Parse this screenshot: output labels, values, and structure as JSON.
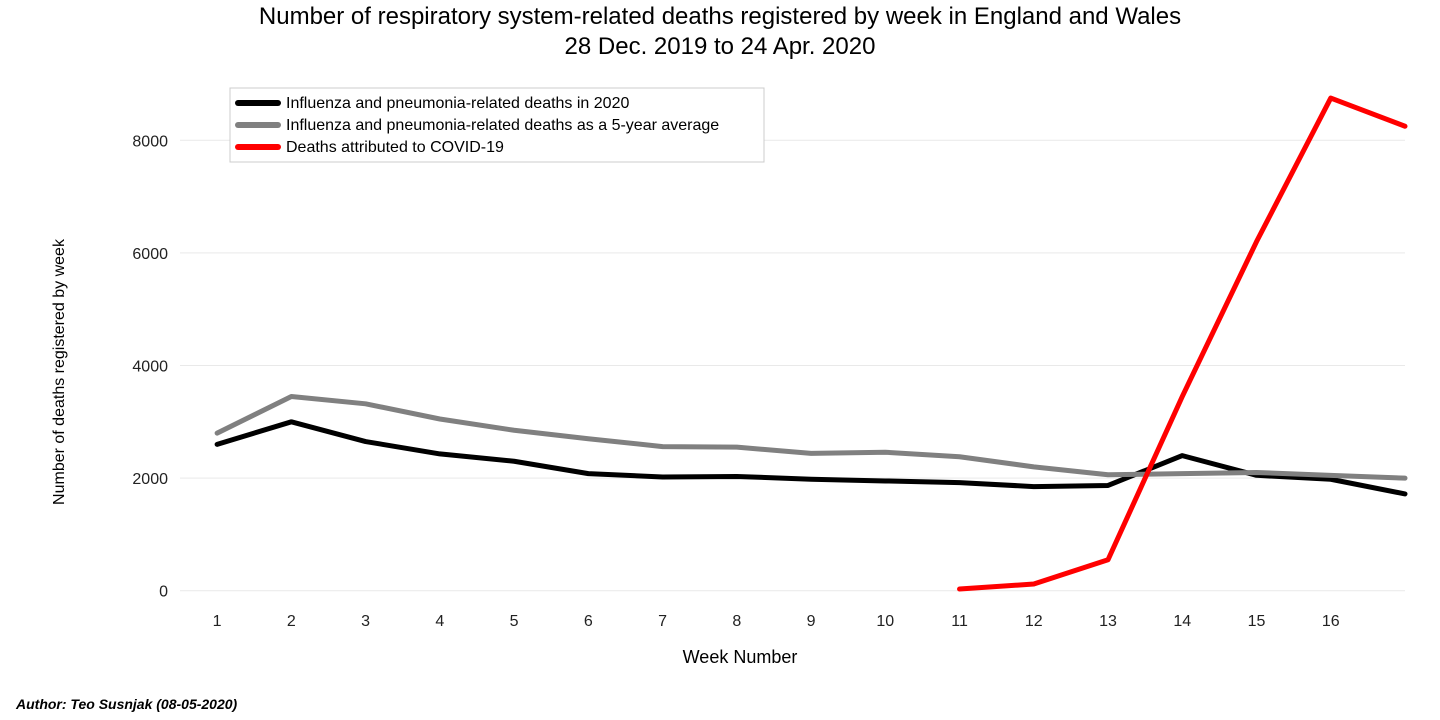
{
  "title_line1": "Number of respiratory system-related deaths registered by week in England and Wales",
  "title_line2": "28 Dec. 2019 to 24 Apr. 2020",
  "author": "Author: Teo Susnjak (08-05-2020)",
  "chart": {
    "type": "line",
    "xlabel": "Week Number",
    "ylabel": "Number of deaths registered by week",
    "xlim": [
      0.5,
      17
    ],
    "ylim": [
      -200,
      9000
    ],
    "xtick_labels": [
      "1",
      "2",
      "3",
      "4",
      "5",
      "6",
      "7",
      "8",
      "9",
      "10",
      "11",
      "12",
      "13",
      "14",
      "15",
      "16"
    ],
    "xtick_positions": [
      1,
      2,
      3,
      4,
      5,
      6,
      7,
      8,
      9,
      10,
      11,
      12,
      13,
      14,
      15,
      16
    ],
    "ytick_labels": [
      "0",
      "2000",
      "4000",
      "6000",
      "8000"
    ],
    "ytick_positions": [
      0,
      2000,
      4000,
      6000,
      8000
    ],
    "background_color": "#ffffff",
    "grid_color": "#e9e9e9",
    "axis_color": "#444444",
    "title_fontsize": 24,
    "label_fontsize": 16,
    "tick_fontsize": 16,
    "line_width": 5,
    "series": [
      {
        "name": "Influenza and pneumonia-related deaths in 2020",
        "color": "#000000",
        "x": [
          1,
          2,
          3,
          4,
          5,
          6,
          7,
          8,
          9,
          10,
          11,
          12,
          13,
          14,
          15,
          16,
          17
        ],
        "y": [
          2600,
          3000,
          2650,
          2430,
          2300,
          2080,
          2020,
          2030,
          1980,
          1950,
          1920,
          1850,
          1870,
          2400,
          2050,
          1980,
          1720
        ]
      },
      {
        "name": "Influenza and pneumonia-related deaths as a 5-year average",
        "color": "#808080",
        "x": [
          1,
          2,
          3,
          4,
          5,
          6,
          7,
          8,
          9,
          10,
          11,
          12,
          13,
          14,
          15,
          16,
          17
        ],
        "y": [
          2800,
          3450,
          3320,
          3050,
          2850,
          2700,
          2560,
          2550,
          2440,
          2460,
          2380,
          2200,
          2060,
          2080,
          2100,
          2050,
          2000
        ]
      },
      {
        "name": "Deaths attributed to COVID-19",
        "color": "#ff0000",
        "x": [
          11,
          12,
          13,
          14,
          15,
          16,
          17
        ],
        "y": [
          30,
          120,
          550,
          3450,
          6200,
          8750,
          8250
        ]
      }
    ],
    "legend": {
      "position": "top-left",
      "bg": "#ffffff",
      "border": "#cccccc"
    }
  }
}
